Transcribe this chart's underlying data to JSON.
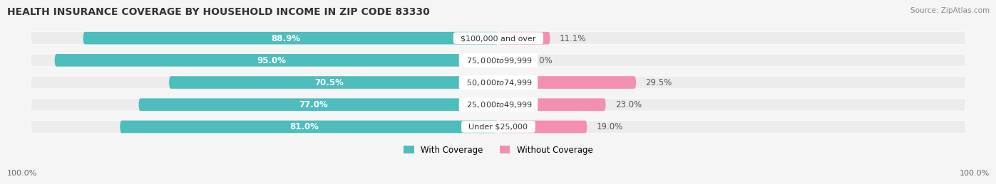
{
  "title": "HEALTH INSURANCE COVERAGE BY HOUSEHOLD INCOME IN ZIP CODE 83330",
  "source": "Source: ZipAtlas.com",
  "categories": [
    "Under $25,000",
    "$25,000 to $49,999",
    "$50,000 to $74,999",
    "$75,000 to $99,999",
    "$100,000 and over"
  ],
  "with_coverage": [
    81.0,
    77.0,
    70.5,
    95.0,
    88.9
  ],
  "without_coverage": [
    19.0,
    23.0,
    29.5,
    5.0,
    11.1
  ],
  "color_with": "#4dbdbd",
  "color_without": "#f48fb1",
  "color_with_light": "#b2dfdf",
  "color_without_light": "#fce4ec",
  "bg_color": "#f5f5f5",
  "bar_bg_color": "#ececec",
  "legend_label_with": "With Coverage",
  "legend_label_without": "Without Coverage",
  "left_label": "100.0%",
  "right_label": "100.0%",
  "title_fontsize": 10,
  "label_fontsize": 8.5,
  "bar_height": 0.55,
  "figsize": [
    14.06,
    2.69
  ]
}
